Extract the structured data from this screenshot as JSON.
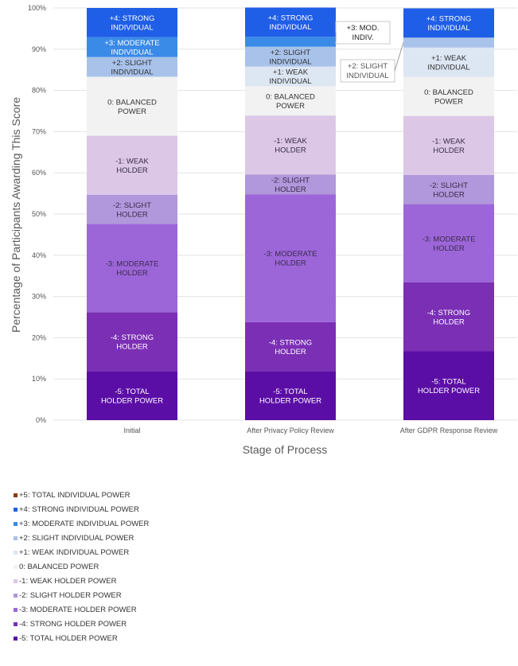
{
  "chart_data": {
    "type": "bar",
    "stacked": true,
    "normalized": true,
    "xlabel": "Stage of Process",
    "ylabel": "Percentage of Participants Awarding This Score",
    "ylim": [
      0,
      100
    ],
    "y_ticks": [
      "0%",
      "10%",
      "20%",
      "30%",
      "40%",
      "50%",
      "60%",
      "70%",
      "80%",
      "90%",
      "100%"
    ],
    "categories": [
      "Initial",
      "After Privacy Policy Review",
      "After GDPR Response Review"
    ],
    "legend_position": "bottom-left",
    "series": [
      {
        "name": "-5: TOTAL HOLDER POWER",
        "color": "#5b0ea6",
        "values": [
          11.9,
          11.9,
          16.7
        ],
        "labels": [
          "-5: TOTAL HOLDER POWER",
          "-5: TOTAL HOLDER POWER",
          "-5: TOTAL HOLDER POWER"
        ],
        "label_color": "#ffffff"
      },
      {
        "name": "-4: STRONG HOLDER POWER",
        "color": "#7b2fb5",
        "values": [
          14.3,
          11.9,
          16.7
        ],
        "labels": [
          "-4: STRONG HOLDER",
          "-4: STRONG HOLDER",
          "-4: STRONG HOLDER"
        ],
        "label_color": "#ffffff"
      },
      {
        "name": "-3: MODERATE HOLDER POWER",
        "color": "#9c66d9",
        "values": [
          21.4,
          31.0,
          19.0
        ],
        "labels": [
          "-3: MODERATE HOLDER",
          "-3: MODERATE HOLDER",
          "-3: MODERATE HOLDER"
        ],
        "label_color": "#3a2a4a"
      },
      {
        "name": "-2: SLIGHT HOLDER POWER",
        "color": "#b197db",
        "values": [
          7.1,
          4.8,
          7.1
        ],
        "labels": [
          "-2: SLIGHT HOLDER",
          "-2: SLIGHT HOLDER",
          "-2: SLIGHT HOLDER"
        ],
        "label_color": "#3a2a4a"
      },
      {
        "name": "-1: WEAK HOLDER POWER",
        "color": "#dcc8e6",
        "values": [
          14.3,
          14.3,
          14.3
        ],
        "labels": [
          "-1: WEAK HOLDER",
          "-1: WEAK HOLDER",
          "-1: WEAK HOLDER"
        ],
        "label_color": "#3a2a4a"
      },
      {
        "name": "0: BALANCED POWER",
        "color": "#f2f2f2",
        "values": [
          14.3,
          7.1,
          9.5
        ],
        "labels": [
          "0: BALANCED POWER",
          "0: BALANCED POWER",
          "0: BALANCED POWER"
        ],
        "label_color": "#333333"
      },
      {
        "name": "+1: WEAK INDIVIDUAL POWER",
        "color": "#dde6f3",
        "values": [
          0,
          4.8,
          7.1
        ],
        "labels": [
          "",
          "+1: WEAK INDIVIDUAL",
          "+1: WEAK INDIVIDUAL"
        ],
        "label_color": "#333333"
      },
      {
        "name": "+2: SLIGHT INDIVIDUAL POWER",
        "color": "#a8c2ea",
        "values": [
          4.8,
          4.8,
          2.4
        ],
        "labels": [
          "+2: SLIGHT INDIVIDUAL",
          "+2: SLIGHT INDIVIDUAL",
          ""
        ],
        "label_color": "#333333"
      },
      {
        "name": "+3: MODERATE INDIVIDUAL POWER",
        "color": "#3a8ae8",
        "values": [
          4.8,
          2.4,
          0
        ],
        "labels": [
          "+3: MODERATE INDIVIDUAL",
          "",
          ""
        ],
        "label_color": "#ffffff"
      },
      {
        "name": "+4: STRONG INDIVIDUAL POWER",
        "color": "#1f5ee6",
        "values": [
          7.1,
          7.1,
          7.1
        ],
        "labels": [
          "+4: STRONG INDIVIDUAL",
          "+4: STRONG INDIVIDUAL",
          "+4: STRONG INDIVIDUAL"
        ],
        "label_color": "#ffffff"
      },
      {
        "name": "+5: TOTAL INDIVIDUAL POWER",
        "color": "#8b3a0f",
        "values": [
          0,
          0,
          0
        ],
        "labels": [
          "",
          "",
          ""
        ],
        "label_color": "#ffffff"
      }
    ],
    "callouts": [
      {
        "text": [
          "+3: MOD.",
          "INDIV."
        ],
        "category": 1,
        "series": "+3: MODERATE INDIVIDUAL POWER"
      },
      {
        "text": [
          "+2: SLIGHT",
          "INDIVIDUAL"
        ],
        "category": 2,
        "series": "+2: SLIGHT INDIVIDUAL POWER"
      }
    ]
  },
  "legend": [
    {
      "label": "+5: TOTAL INDIVIDUAL POWER",
      "color": "#8b3a0f"
    },
    {
      "label": "+4: STRONG INDIVIDUAL POWER",
      "color": "#1f5ee6"
    },
    {
      "label": "+3: MODERATE INDIVIDUAL POWER",
      "color": "#3a8ae8"
    },
    {
      "label": "+2: SLIGHT INDIVIDUAL POWER",
      "color": "#a8c2ea"
    },
    {
      "label": "+1: WEAK INDIVIDUAL POWER",
      "color": "#dde6f3"
    },
    {
      "label": "0: BALANCED POWER",
      "color": "#f2f2f2"
    },
    {
      "label": "-1: WEAK HOLDER POWER",
      "color": "#dcc8e6"
    },
    {
      "label": "-2: SLIGHT HOLDER POWER",
      "color": "#b197db"
    },
    {
      "label": "-3: MODERATE HOLDER POWER",
      "color": "#9c66d9"
    },
    {
      "label": "-4: STRONG HOLDER POWER",
      "color": "#7b2fb5"
    },
    {
      "label": "-5: TOTAL HOLDER POWER",
      "color": "#5b0ea6"
    }
  ]
}
